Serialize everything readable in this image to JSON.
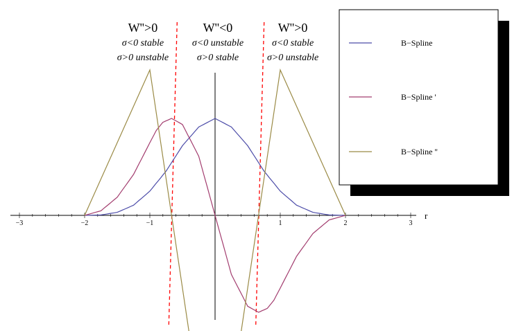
{
  "chart_data": {
    "type": "line",
    "xlabel": "r",
    "xlim": [
      -3,
      3
    ],
    "ylim": [
      -1.33,
      1.33
    ],
    "x_ticks": [
      -3,
      -1,
      1,
      2,
      3
    ],
    "x_tick_labels": [
      "−3",
      "−1",
      "1",
      "2",
      "3"
    ],
    "x_tick_label_minus2": "−2",
    "series": [
      {
        "name": "B−Spline",
        "color": "#4b4ba8",
        "x": [
          -2,
          -1.75,
          -1.5,
          -1.25,
          -1,
          -0.75,
          -0.5,
          -0.25,
          0,
          0.25,
          0.5,
          0.75,
          1,
          1.25,
          1.5,
          1.75,
          2
        ],
        "y": [
          0,
          0.0027,
          0.0208,
          0.0699,
          0.1667,
          0.3047,
          0.4792,
          0.6074,
          0.6667,
          0.6074,
          0.4792,
          0.3047,
          0.1667,
          0.0699,
          0.0208,
          0.0027,
          0
        ]
      },
      {
        "name": "B−Spline '",
        "color": "#a23c6e",
        "x": [
          -2,
          -1.75,
          -1.5,
          -1.25,
          -1,
          -0.9,
          -0.8,
          -0.667,
          -0.5,
          -0.25,
          0,
          0.25,
          0.5,
          0.667,
          0.8,
          0.9,
          1,
          1.25,
          1.5,
          1.75,
          2
        ],
        "y": [
          0,
          0.0313,
          0.125,
          0.2813,
          0.5,
          0.585,
          0.64,
          0.6667,
          0.625,
          0.4063,
          0,
          -0.4063,
          -0.625,
          -0.6667,
          -0.64,
          -0.585,
          -0.5,
          -0.2813,
          -0.125,
          -0.0313,
          0
        ]
      },
      {
        "name": "B−Spline ''",
        "color": "#9a8a45",
        "x": [
          -2,
          -1,
          -0.4,
          0.4,
          1,
          2
        ],
        "y": [
          0,
          1,
          -0.8,
          -0.8,
          1,
          0
        ]
      }
    ],
    "vertical_lines": [
      {
        "x": -0.667,
        "color": "#ff0000",
        "style": "dashed"
      },
      {
        "x": 0.667,
        "color": "#ff0000",
        "style": "dashed"
      }
    ],
    "annotations": [
      {
        "title": "W''>0",
        "line1": "σ<0 stable",
        "line2": "σ>0 unstable",
        "x": -1.15
      },
      {
        "title": "W''<0",
        "line1": "σ<0 unstable",
        "line2": "σ>0 stable",
        "x": 0
      },
      {
        "title": "W''>0",
        "line1": "σ<0 stable",
        "line2": "σ>0 unstable",
        "x": 1.15
      }
    ],
    "legend_position": "top-right"
  }
}
